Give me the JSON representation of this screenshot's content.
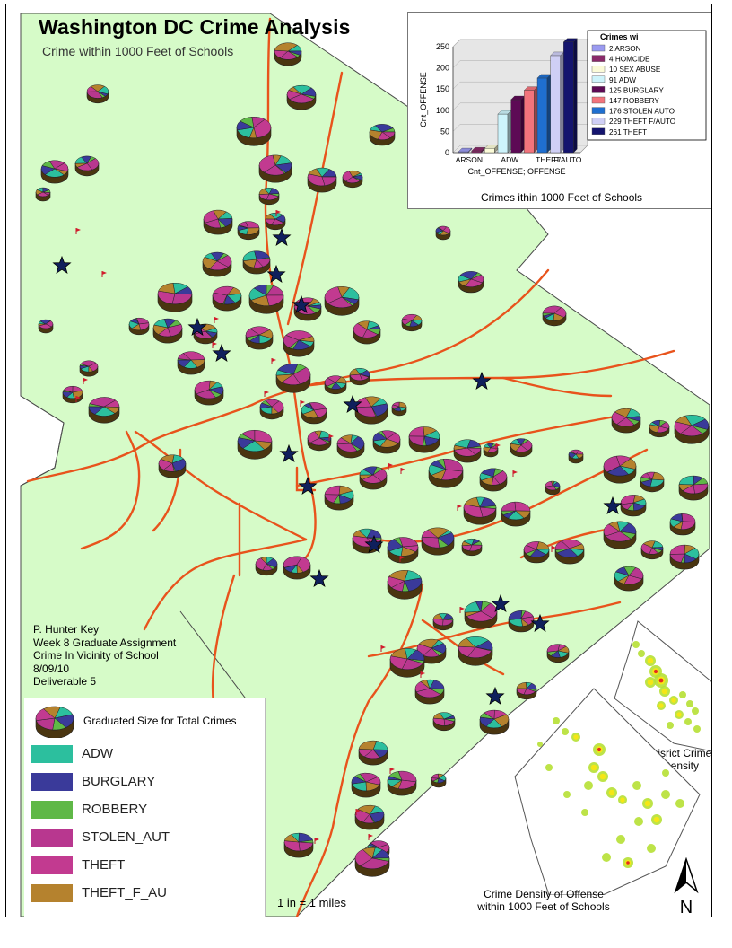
{
  "title": "Washington DC Crime Analysis",
  "subtitle": "Crime within 1000 Feet of Schools",
  "credits": [
    "P. Hunter Key",
    "Week 8 Graduate Assignment",
    "Crime In Vicinity of School",
    "8/09/10",
    "Deliverable 5"
  ],
  "legend": {
    "size_label": "Graduated Size for Total Crimes",
    "items": [
      {
        "label": "ADW",
        "color": "#2cbf9e"
      },
      {
        "label": "BURGLARY",
        "color": "#3a3a9a"
      },
      {
        "label": "ROBBERY",
        "color": "#5fb847"
      },
      {
        "label": "STOLEN_AUT",
        "color": "#b8378f"
      },
      {
        "label": "THEFT",
        "color": "#c23a90"
      },
      {
        "label": "THEFT_F_AU",
        "color": "#b5822e"
      }
    ]
  },
  "scale_text": "1 in = 1 miles",
  "north_label": "N",
  "insets": {
    "district_label": [
      "Disrict Crime",
      "Density"
    ],
    "offense_label": [
      "Crime Density of Offense",
      "within 1000 Feet of Schools"
    ]
  },
  "chart_data": {
    "type": "bar",
    "caption": "Crimes ithin 1000 Feet of Schools",
    "ylabel": "Cnt_OFFENSE",
    "xlabel": "Cnt_OFFENSE; OFFENSE",
    "tick_labels": [
      "ARSON",
      "ADW",
      "THEFT",
      "F/AUTO"
    ],
    "ylim": [
      0,
      250
    ],
    "yticks": [
      0,
      50,
      100,
      150,
      200,
      250
    ],
    "legend_title": "Crimes wi",
    "series": [
      {
        "name": "2 ARSON",
        "category": "ARSON",
        "value": 2,
        "color": "#9a9af0"
      },
      {
        "name": "4 HOMCIDE",
        "category": "HOMCIDE",
        "value": 4,
        "color": "#8a2a6a"
      },
      {
        "name": "10 SEX ABUSE",
        "category": "SEX ABUSE",
        "value": 10,
        "color": "#fbfbd8"
      },
      {
        "name": "91 ADW",
        "category": "ADW",
        "value": 91,
        "color": "#cdf3fb"
      },
      {
        "name": "125 BURGLARY",
        "category": "BURGLARY",
        "value": 125,
        "color": "#5d0a55"
      },
      {
        "name": "147 ROBBERY",
        "category": "ROBBERY",
        "value": 147,
        "color": "#f2747c"
      },
      {
        "name": "176 STOLEN AUTO",
        "category": "STOLEN AUTO",
        "value": 176,
        "color": "#1f6fd0"
      },
      {
        "name": "229 THEFT F/AUTO",
        "category": "THEFT F/AUTO",
        "value": 229,
        "color": "#cfcff5"
      },
      {
        "name": "261 THEFT",
        "category": "THEFT",
        "value": 261,
        "color": "#14146e"
      }
    ]
  }
}
